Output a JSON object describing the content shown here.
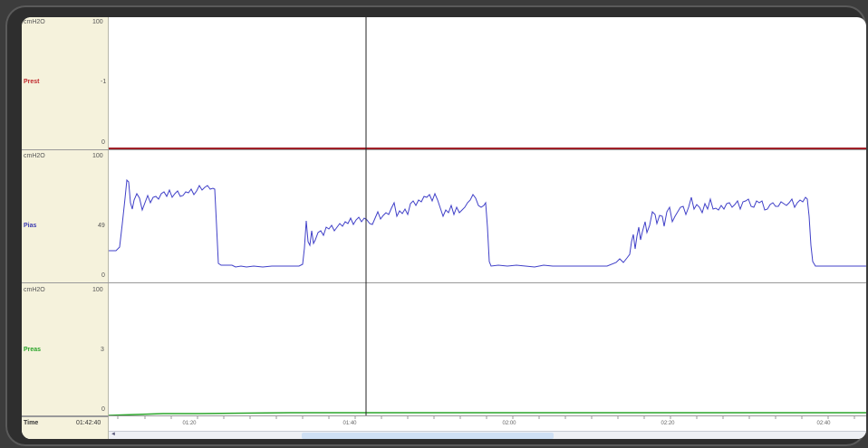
{
  "tracks": [
    {
      "unit": "cmH2O",
      "scale_top": "100",
      "scale_mid": "-1",
      "scale_bottom": "0",
      "name": "Prest",
      "color": "#c0282d"
    },
    {
      "unit": "cmH2O",
      "scale_top": "100",
      "scale_mid": "49",
      "scale_bottom": "0",
      "name": "Pias",
      "color": "#3b3bb0"
    },
    {
      "unit": "cmH2O",
      "scale_top": "100",
      "scale_mid": "3",
      "scale_bottom": "0",
      "name": "Preas",
      "color": "#2aa52a"
    }
  ],
  "timebar": {
    "label": "Time",
    "cursor_time": "01:42:40",
    "ticks": [
      "01:20",
      "01:40",
      "02:00",
      "02:20",
      "02:40"
    ]
  },
  "scrollbar": {
    "arrow": "◄",
    "thumb_start": 0.255,
    "thumb_end": 0.587
  }
}
